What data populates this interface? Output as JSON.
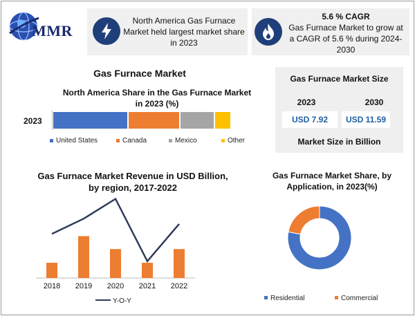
{
  "header": {
    "logo_text": "MMR",
    "box1": {
      "lines": [
        "North America Gas Furnace",
        "Market held largest market share",
        "in 2023"
      ],
      "icon": "lightning-icon"
    },
    "box2": {
      "headline": "5.6 % CAGR",
      "lines": [
        "Gas Furnace Market to grow at",
        "a CAGR of 5.6 % during 2024-",
        "2030"
      ],
      "icon": "flame-icon"
    }
  },
  "main_title": "Gas Furnace Market",
  "market_size": {
    "title": "Gas Furnace Market Size",
    "years": [
      "2023",
      "2030"
    ],
    "values": [
      "USD 7.92",
      "USD 11.59"
    ],
    "footer": "Market Size in Billion"
  },
  "colors": {
    "blue": "#4472c4",
    "orange": "#ed7d31",
    "gray": "#a5a5a5",
    "yellow": "#ffc000",
    "navy": "#2e3a59",
    "icon_bg": "#1f3f7a"
  },
  "chart_data": [
    {
      "type": "bar",
      "orientation": "horizontal-stacked",
      "title": "North America Share in the Gas Furnace Market in 2023 (%)",
      "title_lines": [
        "North America Share in the Gas Furnace Market",
        "in 2023 (%)"
      ],
      "categories": [
        "2023"
      ],
      "series": [
        {
          "name": "United States",
          "values": [
            44
          ],
          "color": "#4472c4"
        },
        {
          "name": "Canada",
          "values": [
            30
          ],
          "color": "#ed7d31"
        },
        {
          "name": "Mexico",
          "values": [
            20
          ],
          "color": "#a5a5a5"
        },
        {
          "name": "Other",
          "values": [
            9
          ],
          "color": "#ffc000"
        }
      ],
      "legend": "bottom"
    },
    {
      "type": "bar",
      "title": "Gas Furnace Market Revenue in USD Billion, by region, 2017-2022",
      "title_lines": [
        "Gas Furnace Market Revenue in USD Billion,",
        "by region, 2017-2022"
      ],
      "categories": [
        "2018",
        "2019",
        "2020",
        "2021",
        "2022"
      ],
      "values": [
        2.0,
        5.5,
        3.8,
        2.0,
        3.8
      ],
      "bar_color": "#ed7d31",
      "ylim": [
        0,
        10
      ],
      "line_series": {
        "name": "Y-O-Y",
        "values": [
          5.8,
          7.8,
          10.4,
          2.2,
          7.1
        ],
        "color": "#2e3a59"
      },
      "legend": "bottom"
    },
    {
      "type": "pie",
      "style": "donut",
      "title": "Gas Furnace Market Share, by Application, in 2023(%)",
      "title_lines": [
        "Gas Furnace Market Share, by",
        "Application, in 2023(%)"
      ],
      "labels": [
        "Residential",
        "Commercial"
      ],
      "values": [
        78,
        22
      ],
      "colors": [
        "#4472c4",
        "#ed7d31"
      ],
      "legend": "bottom"
    }
  ]
}
